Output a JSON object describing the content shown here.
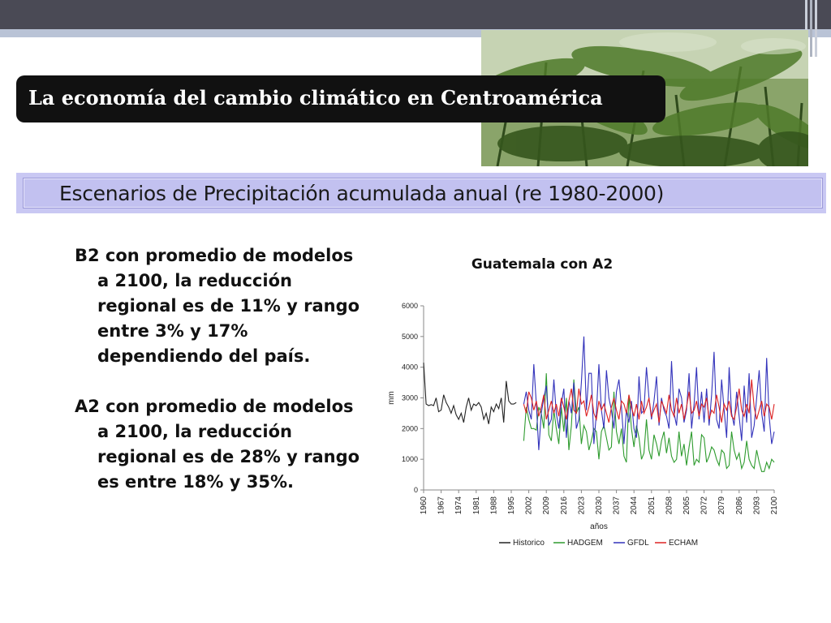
{
  "slide": {
    "title": "La economía del cambio climático en Centroamérica",
    "subtitle": "Escenarios de Precipitación acumulada anual (re 1980-2000)",
    "paragraphs": [
      "B2 con promedio de modelos a 2100, la reducción regional es de 11% y rango entre 3% y 17% dependiendo del país.",
      "A2 con promedio de modelos a 2100, la reducción regional es de 28% y rango es entre 18% y 35%."
    ]
  },
  "chart_data": {
    "type": "line",
    "title": "Guatemala con A2",
    "xlabel": "años",
    "ylabel": "mm",
    "ylim": [
      0,
      6000
    ],
    "yticks": [
      0,
      1000,
      2000,
      3000,
      4000,
      5000,
      6000
    ],
    "xlim": [
      1960,
      2100
    ],
    "xticks": [
      1960,
      1967,
      1974,
      1981,
      1988,
      1995,
      2002,
      2009,
      2016,
      2023,
      2030,
      2037,
      2044,
      2051,
      2058,
      2065,
      2072,
      2079,
      2086,
      2093,
      2100
    ],
    "grid": false,
    "legend": "bottom",
    "series": [
      {
        "name": "Historico",
        "color": "#222222",
        "x_start": 1960,
        "values": [
          4150,
          2800,
          2750,
          2780,
          2750,
          3000,
          2550,
          2600,
          3100,
          2850,
          2700,
          2500,
          2750,
          2450,
          2300,
          2500,
          2200,
          2700,
          3000,
          2600,
          2800,
          2750,
          2850,
          2700,
          2300,
          2500,
          2150,
          2700,
          2550,
          2800,
          2650,
          3000,
          2200,
          3550,
          2900,
          2800,
          2800,
          2850
        ]
      },
      {
        "name": "HADGEM",
        "color": "#2e9b2e",
        "x_start": 2000,
        "values": [
          1600,
          2700,
          2300,
          2000,
          2000,
          1950,
          2700,
          2500,
          2000,
          3800,
          1800,
          1600,
          2600,
          2000,
          1500,
          2700,
          1900,
          3000,
          1300,
          2100,
          3600,
          2500,
          2700,
          1500,
          2100,
          1900,
          1300,
          1600,
          2000,
          1900,
          1000,
          1900,
          2100,
          1700,
          1300,
          1400,
          3200,
          1900,
          1500,
          2000,
          1100,
          900,
          3100,
          2000,
          1400,
          2100,
          1700,
          1000,
          1200,
          2300,
          1300,
          1000,
          1800,
          1500,
          1100,
          1600,
          1900,
          1200,
          1700,
          1100,
          900,
          1000,
          1900,
          1100,
          1500,
          800,
          1400,
          1900,
          800,
          1000,
          900,
          1800,
          1700,
          900,
          1100,
          1400,
          1300,
          1000,
          800,
          1300,
          1200,
          700,
          800,
          1900,
          1300,
          1000,
          1200,
          700,
          900,
          1600,
          1000,
          800,
          700,
          1300,
          900,
          600,
          600,
          900,
          700,
          1000,
          900
        ]
      },
      {
        "name": "GFDL",
        "color": "#3333bb",
        "x_start": 2000,
        "values": [
          2800,
          3200,
          2600,
          2300,
          4100,
          2800,
          1300,
          2500,
          3000,
          3400,
          2100,
          2300,
          3600,
          2500,
          2000,
          2800,
          3300,
          1700,
          2900,
          2500,
          3500,
          2000,
          2300,
          3500,
          5000,
          2600,
          3800,
          3800,
          1500,
          2500,
          4100,
          2600,
          2000,
          3900,
          3000,
          2600,
          2000,
          3200,
          3600,
          2700,
          1500,
          2600,
          2200,
          2900,
          2000,
          1700,
          3700,
          2500,
          2600,
          4000,
          3000,
          2300,
          2900,
          3700,
          2100,
          3000,
          2600,
          2400,
          2000,
          4200,
          2500,
          2100,
          3300,
          3000,
          2200,
          2600,
          3800,
          2000,
          2800,
          4000,
          2300,
          3200,
          2200,
          3300,
          2100,
          3100,
          4500,
          2300,
          2000,
          3600,
          2600,
          1700,
          4000,
          2500,
          2100,
          3200,
          2400,
          1600,
          3400,
          2200,
          3800,
          1700,
          2100,
          3000,
          3900,
          2500,
          1900,
          4300,
          2400,
          1500,
          1900
        ]
      },
      {
        "name": "ECHAM",
        "color": "#dd2222",
        "x_start": 2000,
        "values": [
          2800,
          2500,
          3200,
          3000,
          2600,
          2900,
          2400,
          2700,
          3100,
          2300,
          2600,
          2900,
          2500,
          2800,
          2400,
          3000,
          2700,
          2300,
          2900,
          3300,
          2600,
          2500,
          3300,
          2800,
          2900,
          2400,
          2700,
          3100,
          2500,
          2300,
          2900,
          2600,
          2800,
          2500,
          2200,
          2700,
          3000,
          2600,
          2300,
          2900,
          2800,
          2500,
          3100,
          2700,
          2400,
          2800,
          2300,
          2900,
          2500,
          2700,
          3000,
          2400,
          2600,
          2800,
          2200,
          2900,
          2700,
          2500,
          3100,
          2600,
          2400,
          3000,
          2500,
          2800,
          2300,
          2700,
          3200,
          2500,
          2600,
          2900,
          2400,
          2800,
          2700,
          3000,
          2300,
          2600,
          2500,
          3100,
          2700,
          2200,
          2800,
          2600,
          2900,
          2400,
          2300,
          2700,
          3300,
          2600,
          2400,
          2800,
          2500,
          3600,
          2700,
          2300,
          2600,
          2900,
          2400,
          2800,
          2700,
          2300,
          2800
        ]
      }
    ]
  }
}
